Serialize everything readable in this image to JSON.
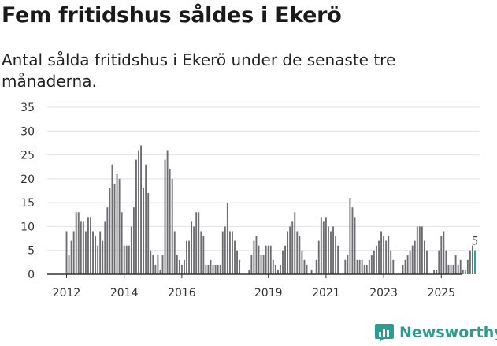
{
  "title": "Fem fritidshus såldes i Ekerö",
  "subtitle": "Antal sålda fritidshus i Ekerö under de senaste tre månaderna.",
  "brand": "Newsworthy",
  "colors": {
    "bar": "#6e6e72",
    "highlight": "#2a9d8f",
    "grid": "#e2e2e2",
    "axis": "#333333",
    "brand": "#2a9d8f"
  },
  "chart_data": {
    "type": "bar",
    "title": "Fem fritidshus såldes i Ekerö",
    "subtitle": "Antal sålda fritidshus i Ekerö under de senaste tre månaderna.",
    "xlabel": "",
    "ylabel": "",
    "ylim": [
      0,
      35
    ],
    "yticks": [
      0,
      5,
      10,
      15,
      20,
      25,
      30,
      35
    ],
    "grid": true,
    "x_start": "2012-01",
    "xticks": [
      {
        "label": "2012",
        "index": 0
      },
      {
        "label": "2014",
        "index": 24
      },
      {
        "label": "2016",
        "index": 48
      },
      {
        "label": "2019",
        "index": 84
      },
      {
        "label": "2021",
        "index": 108
      },
      {
        "label": "2023",
        "index": 132
      },
      {
        "label": "2025",
        "index": 156
      }
    ],
    "values": [
      9,
      4,
      7,
      9,
      13,
      13,
      11,
      11,
      9,
      12,
      12,
      9,
      8,
      6,
      9,
      7,
      11,
      14,
      18,
      23,
      19,
      21,
      20,
      13,
      6,
      6,
      6,
      10,
      14,
      24,
      26,
      27,
      18,
      23,
      17,
      5,
      4,
      2,
      4,
      1,
      4,
      24,
      26,
      22,
      20,
      9,
      4,
      3,
      2,
      3,
      7,
      7,
      11,
      10,
      13,
      13,
      9,
      8,
      2,
      2,
      3,
      2,
      2,
      2,
      2,
      9,
      10,
      15,
      9,
      9,
      7,
      5,
      3,
      0,
      0,
      0,
      1,
      4,
      7,
      8,
      6,
      4,
      4,
      6,
      6,
      6,
      3,
      2,
      1,
      2,
      5,
      6,
      9,
      10,
      11,
      13,
      9,
      8,
      5,
      3,
      2,
      0,
      1,
      0,
      3,
      7,
      12,
      11,
      12,
      10,
      9,
      10,
      8,
      6,
      0,
      0,
      3,
      4,
      16,
      14,
      12,
      3,
      3,
      3,
      2,
      2,
      3,
      4,
      5,
      6,
      7,
      9,
      8,
      7,
      8,
      5,
      3,
      0,
      0,
      0,
      2,
      3,
      4,
      5,
      6,
      7,
      10,
      10,
      10,
      7,
      5,
      0,
      0,
      1,
      1,
      5,
      8,
      9,
      5,
      2,
      2,
      2,
      4,
      2,
      3,
      1,
      1,
      3,
      5,
      6,
      5
    ],
    "highlight_index": 170,
    "annotation": {
      "index": 170,
      "label": "5"
    }
  }
}
